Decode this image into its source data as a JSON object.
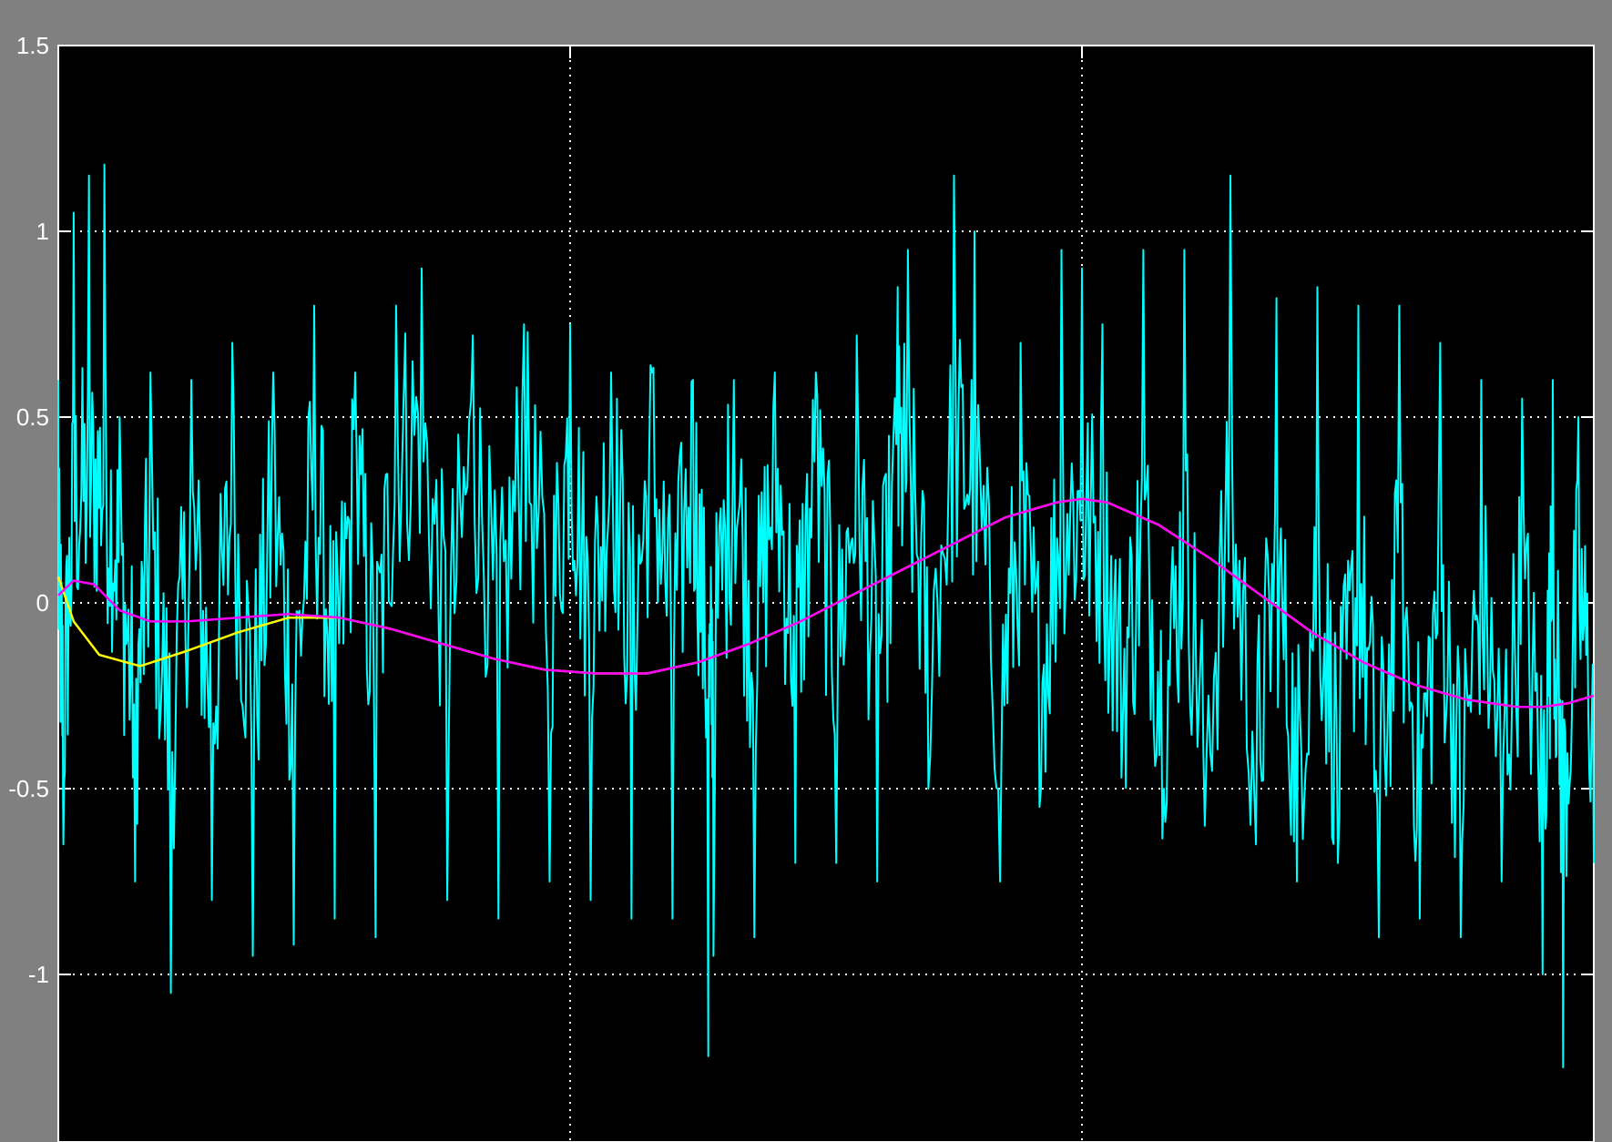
{
  "window": {
    "background_color": "#808080",
    "plot_background_color": "#000000",
    "axis_color": "#ffffff",
    "grid_color": "#ffffff"
  },
  "chart_data": {
    "type": "line",
    "title": "",
    "xlabel": "",
    "ylabel": "",
    "xlim": [
      0,
      3
    ],
    "ylim": [
      -1.5,
      1.5
    ],
    "y_ticks": [
      "1.5",
      "1",
      "0.5",
      "0",
      "-0.5",
      "-1"
    ],
    "x_grid_lines": [
      1,
      2
    ],
    "grid": true,
    "legend": "none",
    "series": [
      {
        "color": "#00ffff",
        "style": "noisy",
        "points": [
          [
            0.0,
            0.6
          ],
          [
            0.01,
            -0.65
          ],
          [
            0.03,
            1.05
          ],
          [
            0.06,
            1.15
          ],
          [
            0.09,
            1.18
          ],
          [
            0.12,
            0.5
          ],
          [
            0.15,
            -0.75
          ],
          [
            0.18,
            0.62
          ],
          [
            0.22,
            -1.05
          ],
          [
            0.26,
            0.6
          ],
          [
            0.3,
            -0.8
          ],
          [
            0.34,
            0.7
          ],
          [
            0.38,
            -0.95
          ],
          [
            0.42,
            0.62
          ],
          [
            0.46,
            -0.92
          ],
          [
            0.5,
            0.8
          ],
          [
            0.54,
            -0.85
          ],
          [
            0.58,
            0.62
          ],
          [
            0.62,
            -0.9
          ],
          [
            0.66,
            0.8
          ],
          [
            0.71,
            0.9
          ],
          [
            0.76,
            -0.8
          ],
          [
            0.81,
            0.72
          ],
          [
            0.86,
            -0.85
          ],
          [
            0.91,
            0.75
          ],
          [
            0.96,
            -0.75
          ],
          [
            1.0,
            0.75
          ],
          [
            1.04,
            -0.8
          ],
          [
            1.08,
            0.62
          ],
          [
            1.12,
            -0.85
          ],
          [
            1.16,
            0.62
          ],
          [
            1.2,
            -0.85
          ],
          [
            1.24,
            0.6
          ],
          [
            1.28,
            -0.95
          ],
          [
            1.27,
            -1.22
          ],
          [
            1.32,
            0.6
          ],
          [
            1.36,
            -0.9
          ],
          [
            1.4,
            0.62
          ],
          [
            1.44,
            -0.7
          ],
          [
            1.48,
            0.62
          ],
          [
            1.52,
            -0.7
          ],
          [
            1.56,
            0.72
          ],
          [
            1.6,
            -0.75
          ],
          [
            1.64,
            0.85
          ],
          [
            1.66,
            0.95
          ],
          [
            1.7,
            -0.5
          ],
          [
            1.75,
            1.15
          ],
          [
            1.79,
            1.0
          ],
          [
            1.84,
            -0.75
          ],
          [
            1.88,
            0.7
          ],
          [
            1.92,
            -0.5
          ],
          [
            1.96,
            0.95
          ],
          [
            2.0,
            0.9
          ],
          [
            2.04,
            0.75
          ],
          [
            2.08,
            -0.3
          ],
          [
            2.12,
            0.95
          ],
          [
            2.16,
            -0.5
          ],
          [
            2.2,
            0.95
          ],
          [
            2.24,
            -0.6
          ],
          [
            2.29,
            1.15
          ],
          [
            2.34,
            -0.65
          ],
          [
            2.38,
            0.82
          ],
          [
            2.42,
            -0.75
          ],
          [
            2.46,
            0.85
          ],
          [
            2.5,
            -0.7
          ],
          [
            2.54,
            0.8
          ],
          [
            2.58,
            -0.9
          ],
          [
            2.62,
            0.8
          ],
          [
            2.66,
            -0.85
          ],
          [
            2.7,
            0.7
          ],
          [
            2.74,
            -0.9
          ],
          [
            2.78,
            0.6
          ],
          [
            2.82,
            -0.75
          ],
          [
            2.86,
            0.55
          ],
          [
            2.9,
            -1.0
          ],
          [
            2.92,
            0.6
          ],
          [
            2.94,
            -1.25
          ],
          [
            2.97,
            0.5
          ],
          [
            3.0,
            -0.7
          ]
        ]
      },
      {
        "color": "#ffff00",
        "style": "smooth",
        "points": [
          [
            0.0,
            0.07
          ],
          [
            0.03,
            -0.05
          ],
          [
            0.08,
            -0.14
          ],
          [
            0.16,
            -0.17
          ],
          [
            0.25,
            -0.13
          ],
          [
            0.35,
            -0.08
          ],
          [
            0.45,
            -0.04
          ],
          [
            0.55,
            -0.04
          ],
          [
            0.65,
            -0.07
          ],
          [
            0.75,
            -0.11
          ],
          [
            0.85,
            -0.15
          ],
          [
            0.95,
            -0.18
          ],
          [
            1.05,
            -0.19
          ],
          [
            1.15,
            -0.19
          ],
          [
            1.25,
            -0.16
          ],
          [
            1.35,
            -0.11
          ],
          [
            1.45,
            -0.05
          ],
          [
            1.55,
            0.02
          ],
          [
            1.65,
            0.09
          ],
          [
            1.75,
            0.16
          ],
          [
            1.85,
            0.23
          ],
          [
            1.95,
            0.27
          ],
          [
            2.0,
            0.28
          ],
          [
            2.05,
            0.27
          ],
          [
            2.15,
            0.21
          ],
          [
            2.25,
            0.12
          ],
          [
            2.35,
            0.02
          ],
          [
            2.45,
            -0.08
          ],
          [
            2.55,
            -0.16
          ],
          [
            2.65,
            -0.22
          ],
          [
            2.75,
            -0.26
          ],
          [
            2.85,
            -0.28
          ],
          [
            2.9,
            -0.28
          ],
          [
            2.95,
            -0.27
          ],
          [
            3.0,
            -0.25
          ]
        ]
      },
      {
        "color": "#ff00ff",
        "style": "smooth",
        "points": [
          [
            0.0,
            0.02
          ],
          [
            0.03,
            0.06
          ],
          [
            0.07,
            0.05
          ],
          [
            0.12,
            -0.02
          ],
          [
            0.18,
            -0.05
          ],
          [
            0.25,
            -0.05
          ],
          [
            0.35,
            -0.04
          ],
          [
            0.45,
            -0.03
          ],
          [
            0.55,
            -0.04
          ],
          [
            0.65,
            -0.07
          ],
          [
            0.75,
            -0.11
          ],
          [
            0.85,
            -0.15
          ],
          [
            0.95,
            -0.18
          ],
          [
            1.05,
            -0.19
          ],
          [
            1.15,
            -0.19
          ],
          [
            1.25,
            -0.16
          ],
          [
            1.35,
            -0.11
          ],
          [
            1.45,
            -0.05
          ],
          [
            1.55,
            0.02
          ],
          [
            1.65,
            0.09
          ],
          [
            1.75,
            0.16
          ],
          [
            1.85,
            0.23
          ],
          [
            1.95,
            0.27
          ],
          [
            2.0,
            0.28
          ],
          [
            2.05,
            0.27
          ],
          [
            2.15,
            0.21
          ],
          [
            2.25,
            0.12
          ],
          [
            2.35,
            0.02
          ],
          [
            2.45,
            -0.08
          ],
          [
            2.55,
            -0.16
          ],
          [
            2.65,
            -0.22
          ],
          [
            2.75,
            -0.26
          ],
          [
            2.85,
            -0.28
          ],
          [
            2.9,
            -0.28
          ],
          [
            2.95,
            -0.27
          ],
          [
            3.0,
            -0.25
          ]
        ]
      }
    ]
  }
}
